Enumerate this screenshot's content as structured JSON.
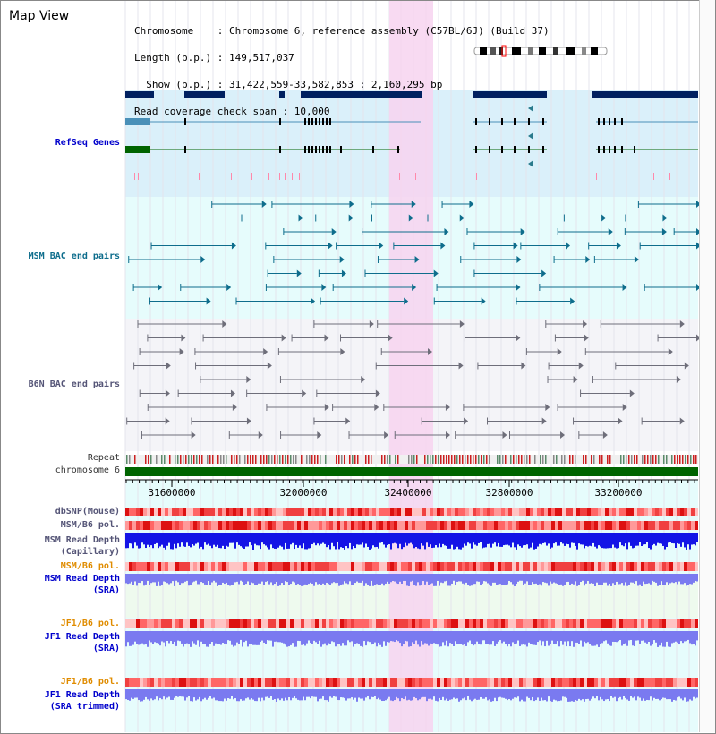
{
  "title": "Map View",
  "info": {
    "chromosome": "Chromosome    : Chromosome 6, reference assembly (C57BL/6J) (Build 37)",
    "length": "Length (b.p.) : 149,517,037",
    "show": "  Show (b.p.) : 31,422,559-33,582,853 : 2,160,295 bp",
    "coverage": "Read coverage check span : 10,000"
  },
  "tracks": {
    "refseq": "RefSeq Genes",
    "msm_bac": "MSM BAC end pairs",
    "b6n_bac": "B6N BAC end pairs",
    "repeat": "Repeat",
    "chromosome": "chromosome 6",
    "dbsnp": "dbSNP(Mouse)",
    "msm_pol1": "MSM/B6 pol.",
    "msm_depth_cap_1": "MSM Read Depth",
    "msm_depth_cap_2": "(Capillary)",
    "msm_pol2": "MSM/B6 pol.",
    "msm_depth_sra_1": "MSM Read Depth",
    "msm_depth_sra_2": "(SRA)",
    "jf1_pol1": "JF1/B6 pol.",
    "jf1_depth_sra_1": "JF1 Read Depth",
    "jf1_depth_sra_2": "(SRA)",
    "jf1_pol2": "JF1/B6 pol.",
    "jf1_depth_trim_1": "JF1 Read Depth",
    "jf1_depth_trim_2": "(SRA trimmed)"
  },
  "axis_ticks": [
    "31600000",
    "32000000",
    "32400000",
    "32800000",
    "33200000"
  ],
  "colors": {
    "refseq_bg": "#daf0fa",
    "bac_bg": "#e6fcfc",
    "highlight": "#f7d4f0",
    "gene_navy": "#002060",
    "gene_blue": "#4a90b8",
    "gene_green": "#006400",
    "teal": "#0e6d8c",
    "grey": "#6e6e7a",
    "chromosome_green": "#006400",
    "pol_red": "#ee4444",
    "depth_blue": "#1414e6",
    "depth_light": "#7a7af0"
  }
}
